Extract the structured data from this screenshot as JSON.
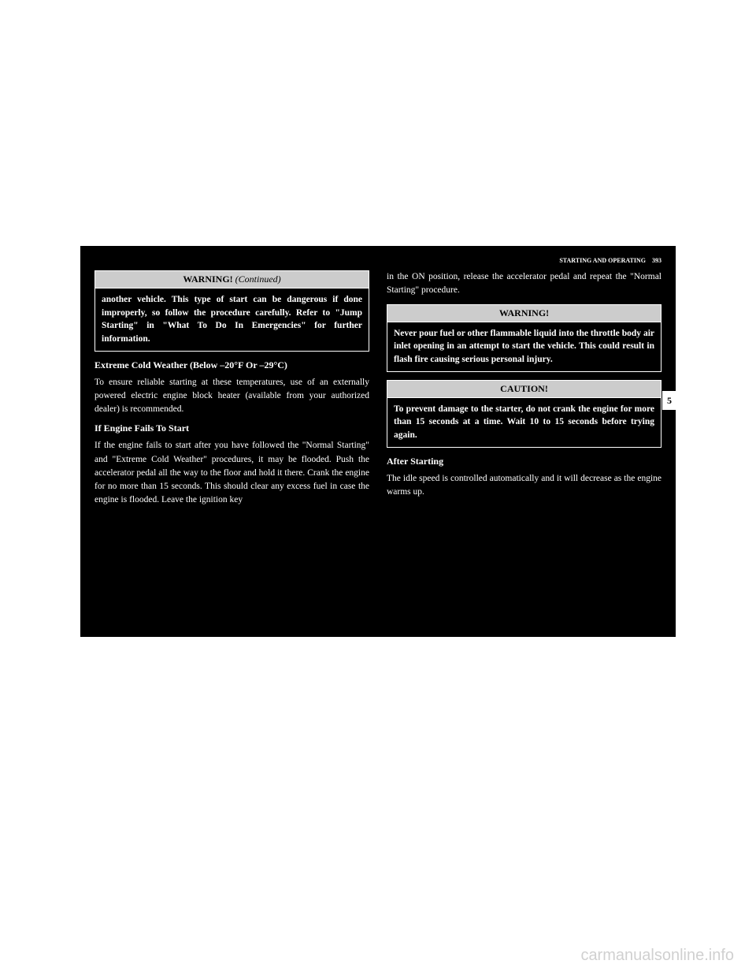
{
  "header": {
    "section_title": "STARTING AND OPERATING",
    "page_number": "393"
  },
  "section_tab": "5",
  "left_column": {
    "warning_continued": {
      "title": "WARNING!",
      "suffix": "(Continued)",
      "body": "another vehicle. This type of start can be dangerous if done improperly, so follow the procedure carefully. Refer to \"Jump Starting\" in \"What To Do In Emergencies\" for further information."
    },
    "heading1": "Extreme Cold Weather (Below –20°F Or –29°C)",
    "para1": "To ensure reliable starting at these temperatures, use of an externally powered electric engine block heater (available from your authorized dealer) is recommended.",
    "heading2": "If Engine Fails To Start",
    "para2": "If the engine fails to start after you have followed the \"Normal Starting\" and \"Extreme Cold Weather\" procedures, it may be flooded. Push the accelerator pedal all the way to the floor and hold it there. Crank the engine for no more than 15 seconds. This should clear any excess fuel in case the engine is flooded. Leave the ignition key"
  },
  "right_column": {
    "para_top": "in the ON position, release the accelerator pedal and repeat the \"Normal Starting\" procedure.",
    "warning": {
      "title": "WARNING!",
      "body": "Never pour fuel or other flammable liquid into the throttle body air inlet opening in an attempt to start the vehicle. This could result in flash fire causing serious personal injury."
    },
    "caution": {
      "title": "CAUTION!",
      "body": "To prevent damage to the starter, do not crank the engine for more than 15 seconds at a time. Wait 10 to 15 seconds before trying again."
    },
    "heading3": "After Starting",
    "para3": "The idle speed is controlled automatically and it will decrease as the engine warms up."
  },
  "watermark": "carmanualsonline.info"
}
